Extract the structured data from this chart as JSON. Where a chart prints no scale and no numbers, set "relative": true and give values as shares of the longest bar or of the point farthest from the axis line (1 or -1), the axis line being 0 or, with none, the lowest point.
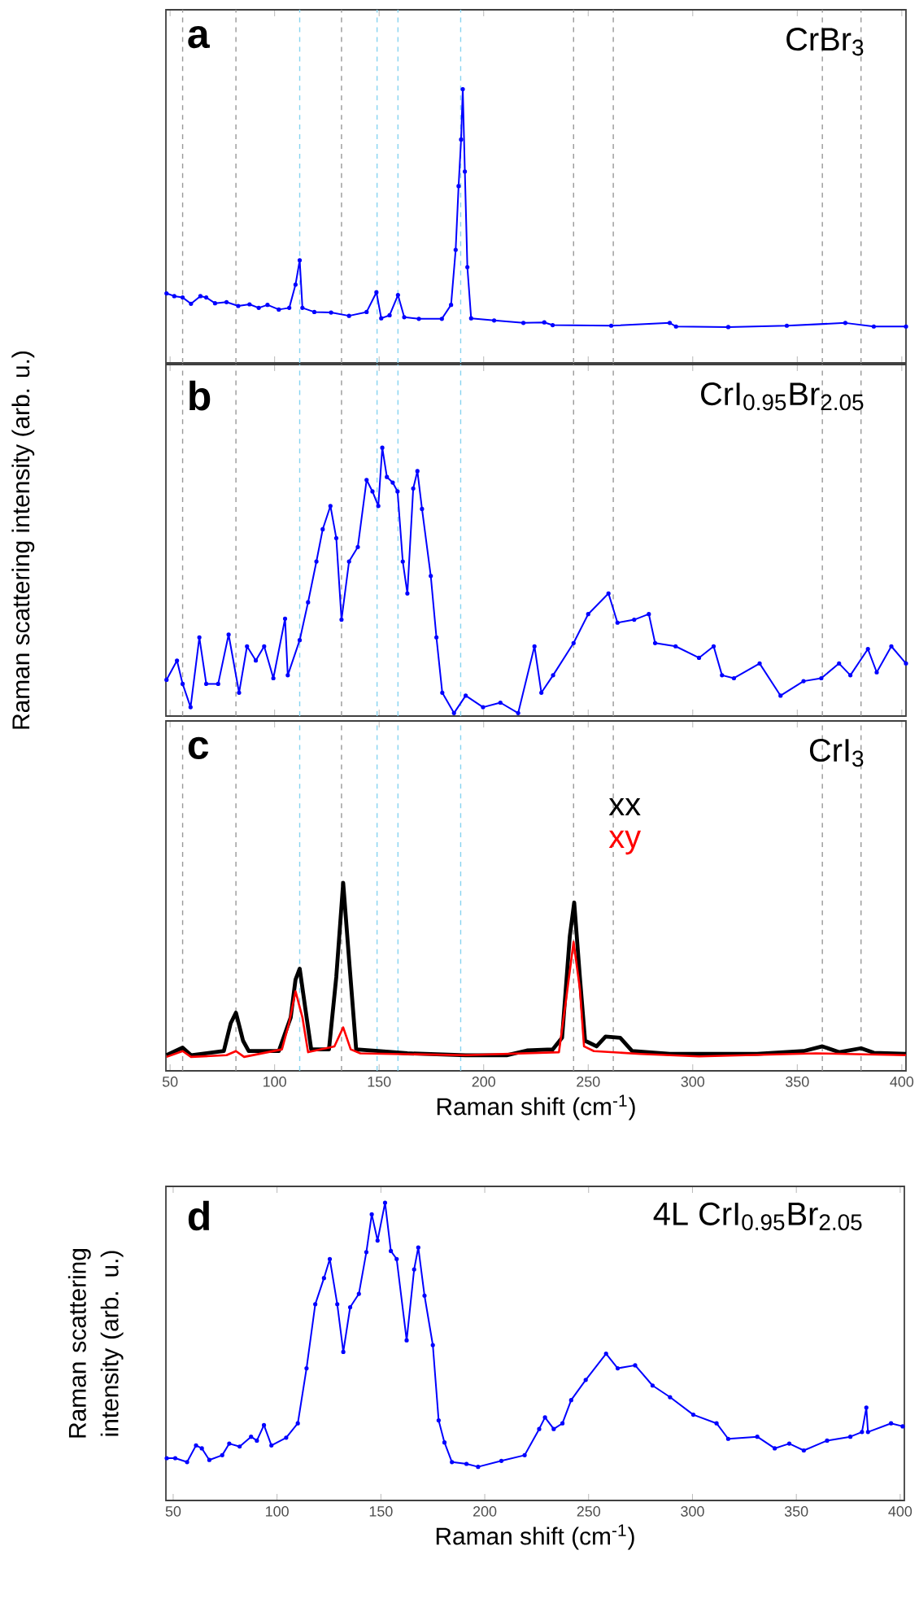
{
  "chart_data": [
    {
      "type": "line",
      "relative": true,
      "marker": "circle",
      "tick_labels": false,
      "annotations": [
        "a",
        "CrBr$_{3}$"
      ],
      "xlim": [
        48,
        402
      ],
      "xticks": [
        50,
        100,
        150,
        200,
        250,
        300,
        350,
        400
      ],
      "ref_lines": [
        {
          "axis": "x",
          "value": 56,
          "color": "#999999",
          "line_style": "dashed"
        },
        {
          "axis": "x",
          "value": 81.5,
          "color": "#999999",
          "line_style": "dashed"
        },
        {
          "axis": "x",
          "value": 132,
          "color": "#999999",
          "line_style": "dashed"
        },
        {
          "axis": "x",
          "value": 243,
          "color": "#999999",
          "line_style": "dashed"
        },
        {
          "axis": "x",
          "value": 262,
          "color": "#999999",
          "line_style": "dashed"
        },
        {
          "axis": "x",
          "value": 362,
          "color": "#999999",
          "line_style": "dashed"
        },
        {
          "axis": "x",
          "value": 380.5,
          "color": "#999999",
          "line_style": "dashed"
        },
        {
          "axis": "x",
          "value": 112,
          "color": "#87d3f0",
          "line_style": "dashed"
        },
        {
          "axis": "x",
          "value": 149,
          "color": "#87d3f0",
          "line_style": "dashed"
        },
        {
          "axis": "x",
          "value": 159,
          "color": "#87d3f0",
          "line_style": "dashed"
        },
        {
          "axis": "x",
          "value": 189,
          "color": "#87d3f0",
          "line_style": "dashed"
        }
      ],
      "series": [
        {
          "color": "#0000ff",
          "x": [
            48.3,
            52,
            56,
            60,
            64.5,
            67.3,
            71.5,
            77,
            82.6,
            88,
            92.4,
            96.6,
            102,
            107,
            110,
            112,
            113.3,
            119,
            127,
            135.6,
            144,
            148.7,
            151,
            155,
            159,
            162,
            169,
            180,
            184.4,
            186.6,
            188,
            189.2,
            190,
            191,
            192.2,
            194,
            205,
            219,
            229,
            233,
            261,
            289,
            292,
            317,
            345,
            373,
            386.6,
            402
          ],
          "values": [
            0.254,
            0.244,
            0.239,
            0.216,
            0.244,
            0.239,
            0.218,
            0.222,
            0.208,
            0.214,
            0.201,
            0.212,
            0.195,
            0.201,
            0.286,
            0.375,
            0.201,
            0.186,
            0.184,
            0.172,
            0.186,
            0.258,
            0.163,
            0.174,
            0.248,
            0.167,
            0.161,
            0.161,
            0.212,
            0.413,
            0.646,
            0.816,
            1,
            0.699,
            0.35,
            0.163,
            0.155,
            0.146,
            0.148,
            0.138,
            0.136,
            0.146,
            0.133,
            0.131,
            0.136,
            0.146,
            0.133,
            0.133
          ]
        }
      ]
    },
    {
      "type": "line",
      "relative": true,
      "marker": "circle",
      "tick_labels": false,
      "annotations": [
        "b",
        "CrI$_{0.95}$Br$_{2.05}$"
      ],
      "ylabel": "Raman scattering intensity (arb. u.)",
      "xlim": [
        48,
        402
      ],
      "xticks": [
        50,
        100,
        150,
        200,
        250,
        300,
        350,
        400
      ],
      "ref_lines": [
        {
          "axis": "x",
          "value": 56,
          "color": "#999999",
          "line_style": "dashed"
        },
        {
          "axis": "x",
          "value": 81.5,
          "color": "#999999",
          "line_style": "dashed"
        },
        {
          "axis": "x",
          "value": 132,
          "color": "#999999",
          "line_style": "dashed"
        },
        {
          "axis": "x",
          "value": 243,
          "color": "#999999",
          "line_style": "dashed"
        },
        {
          "axis": "x",
          "value": 262,
          "color": "#999999",
          "line_style": "dashed"
        },
        {
          "axis": "x",
          "value": 362,
          "color": "#999999",
          "line_style": "dashed"
        },
        {
          "axis": "x",
          "value": 380.5,
          "color": "#999999",
          "line_style": "dashed"
        },
        {
          "axis": "x",
          "value": 112,
          "color": "#87d3f0",
          "line_style": "dashed"
        },
        {
          "axis": "x",
          "value": 149,
          "color": "#87d3f0",
          "line_style": "dashed"
        },
        {
          "axis": "x",
          "value": 159,
          "color": "#87d3f0",
          "line_style": "dashed"
        },
        {
          "axis": "x",
          "value": 189,
          "color": "#87d3f0",
          "line_style": "dashed"
        }
      ],
      "series": [
        {
          "color": "#0000ff",
          "x": [
            48.3,
            53.3,
            56,
            59.8,
            64,
            67.3,
            73,
            78,
            83,
            86.8,
            91,
            95,
            99.4,
            105,
            106.3,
            112,
            116,
            120,
            123,
            126.7,
            129.5,
            132,
            135.6,
            139.8,
            144,
            146.8,
            149.6,
            151.5,
            153.7,
            156.5,
            158.8,
            161.3,
            163.5,
            166.3,
            168.3,
            170.5,
            174.7,
            177.4,
            180.2,
            185.8,
            191.4,
            199.7,
            208,
            216.5,
            224.3,
            227.6,
            233.2,
            243,
            250,
            259.7,
            264,
            272,
            279,
            282,
            291.8,
            303,
            310,
            314,
            319.7,
            332,
            342,
            353,
            361.5,
            370,
            375.4,
            383.8,
            388,
            395,
            402
          ],
          "values": [
            0.135,
            0.207,
            0.12,
            0.033,
            0.293,
            0.12,
            0.12,
            0.304,
            0.087,
            0.26,
            0.207,
            0.26,
            0.141,
            0.363,
            0.152,
            0.283,
            0.424,
            0.576,
            0.696,
            0.783,
            0.663,
            0.359,
            0.576,
            0.63,
            0.88,
            0.837,
            0.783,
            1,
            0.891,
            0.87,
            0.837,
            0.576,
            0.457,
            0.848,
            0.913,
            0.772,
            0.522,
            0.293,
            0.087,
            0.011,
            0.076,
            0.033,
            0.05,
            0.011,
            0.26,
            0.087,
            0.152,
            0.272,
            0.38,
            0.457,
            0.348,
            0.359,
            0.38,
            0.272,
            0.26,
            0.217,
            0.26,
            0.152,
            0.141,
            0.196,
            0.076,
            0.13,
            0.141,
            0.196,
            0.152,
            0.25,
            0.163,
            0.26,
            0.196
          ]
        }
      ]
    },
    {
      "type": "line",
      "relative": true,
      "tick_labels": "x",
      "legend": "top",
      "annotations": [
        "c",
        "CrI$_{3}$"
      ],
      "xlabel": "Raman shift (cm$^{-1}$)",
      "xlim": [
        48,
        402
      ],
      "xticks": [
        50,
        100,
        150,
        200,
        250,
        300,
        350,
        400
      ],
      "ref_lines": [
        {
          "axis": "x",
          "value": 56,
          "color": "#999999",
          "line_style": "dashed"
        },
        {
          "axis": "x",
          "value": 81.5,
          "color": "#999999",
          "line_style": "dashed"
        },
        {
          "axis": "x",
          "value": 132,
          "color": "#999999",
          "line_style": "dashed"
        },
        {
          "axis": "x",
          "value": 243,
          "color": "#999999",
          "line_style": "dashed"
        },
        {
          "axis": "x",
          "value": 262,
          "color": "#999999",
          "line_style": "dashed"
        },
        {
          "axis": "x",
          "value": 362,
          "color": "#999999",
          "line_style": "dashed"
        },
        {
          "axis": "x",
          "value": 380.5,
          "color": "#999999",
          "line_style": "dashed"
        },
        {
          "axis": "x",
          "value": 112,
          "color": "#87d3f0",
          "line_style": "dashed"
        },
        {
          "axis": "x",
          "value": 149,
          "color": "#87d3f0",
          "line_style": "dashed"
        },
        {
          "axis": "x",
          "value": 159,
          "color": "#87d3f0",
          "line_style": "dashed"
        },
        {
          "axis": "x",
          "value": 189,
          "color": "#87d3f0",
          "line_style": "dashed"
        }
      ],
      "series": [
        {
          "name": "xx",
          "color": "#000000",
          "x": [
            48.3,
            56,
            60,
            75.7,
            79,
            81.5,
            84.9,
            87.6,
            102,
            107.7,
            110,
            112,
            114.7,
            117.5,
            126,
            129.5,
            132.8,
            135.6,
            139,
            149.5,
            163.5,
            191.4,
            211,
            220.7,
            233,
            237.5,
            241.2,
            243.3,
            246,
            248.5,
            254,
            258.3,
            265.3,
            271,
            289,
            330.8,
            353,
            362,
            370,
            380.5,
            386.6,
            402
          ],
          "values": [
            0.083,
            0.123,
            0.083,
            0.105,
            0.253,
            0.309,
            0.16,
            0.105,
            0.105,
            0.284,
            0.485,
            0.543,
            0.33,
            0.114,
            0.114,
            0.5,
            1,
            0.593,
            0.114,
            0.105,
            0.093,
            0.083,
            0.083,
            0.108,
            0.114,
            0.176,
            0.716,
            0.895,
            0.5,
            0.16,
            0.13,
            0.182,
            0.176,
            0.105,
            0.09,
            0.09,
            0.105,
            0.13,
            0.099,
            0.12,
            0.096,
            0.09
          ]
        },
        {
          "name": "xy",
          "color": "#ff0000",
          "x": [
            48.3,
            56,
            60,
            77,
            81.5,
            85.4,
            103.5,
            106.9,
            110,
            113.3,
            116,
            128.6,
            132.8,
            136.4,
            141,
            191.4,
            236,
            239.4,
            243,
            246,
            248,
            252.7,
            275,
            303,
            359,
            402
          ],
          "values": [
            0.074,
            0.105,
            0.074,
            0.083,
            0.105,
            0.074,
            0.114,
            0.253,
            0.423,
            0.284,
            0.099,
            0.13,
            0.231,
            0.114,
            0.093,
            0.083,
            0.099,
            0.377,
            0.685,
            0.438,
            0.13,
            0.105,
            0.09,
            0.077,
            0.093,
            0.083
          ]
        }
      ]
    },
    {
      "type": "line",
      "relative": true,
      "marker": "circle",
      "tick_labels": "x",
      "annotations": [
        "d",
        "4L CrI$_{0.95}$Br$_{2.05}$"
      ],
      "xlabel": "Raman shift (cm$^{-1}$)",
      "ylabel": "Raman scattering intensity (arb. u.)",
      "xlim": [
        46.5,
        402
      ],
      "xticks": [
        50,
        100,
        150,
        200,
        250,
        300,
        350,
        400
      ],
      "series": [
        {
          "color": "#0000ff",
          "x": [
            46.9,
            51,
            56.7,
            61,
            63.8,
            67.4,
            73.6,
            77,
            82,
            87.5,
            90.3,
            93.7,
            97.3,
            104.4,
            110,
            114.2,
            118.4,
            122.6,
            125.4,
            129,
            131.9,
            135.2,
            139.4,
            143,
            145.6,
            148.4,
            152,
            154.8,
            157.6,
            162.4,
            166,
            168,
            171,
            175,
            177.8,
            180.6,
            184.2,
            191.2,
            196.8,
            208,
            219.2,
            226.2,
            229,
            233.2,
            237.4,
            241.6,
            248.6,
            258.4,
            264,
            272.4,
            280.8,
            289.2,
            300.4,
            311.6,
            317.2,
            331.2,
            339.6,
            346.6,
            353.6,
            364.8,
            376,
            381.6,
            383.7,
            384.5,
            395.6,
            401.2
          ],
          "values": [
            0.142,
            0.142,
            0.129,
            0.185,
            0.175,
            0.136,
            0.152,
            0.191,
            0.181,
            0.214,
            0.201,
            0.253,
            0.185,
            0.211,
            0.259,
            0.444,
            0.659,
            0.747,
            0.811,
            0.659,
            0.499,
            0.649,
            0.694,
            0.834,
            0.961,
            0.873,
            1,
            0.838,
            0.811,
            0.538,
            0.776,
            0.85,
            0.688,
            0.522,
            0.269,
            0.195,
            0.129,
            0.123,
            0.113,
            0.133,
            0.152,
            0.24,
            0.279,
            0.24,
            0.259,
            0.337,
            0.405,
            0.493,
            0.444,
            0.454,
            0.386,
            0.347,
            0.288,
            0.259,
            0.207,
            0.214,
            0.175,
            0.191,
            0.168,
            0.201,
            0.214,
            0.23,
            0.312,
            0.23,
            0.259,
            0.249
          ]
        }
      ]
    }
  ]
}
